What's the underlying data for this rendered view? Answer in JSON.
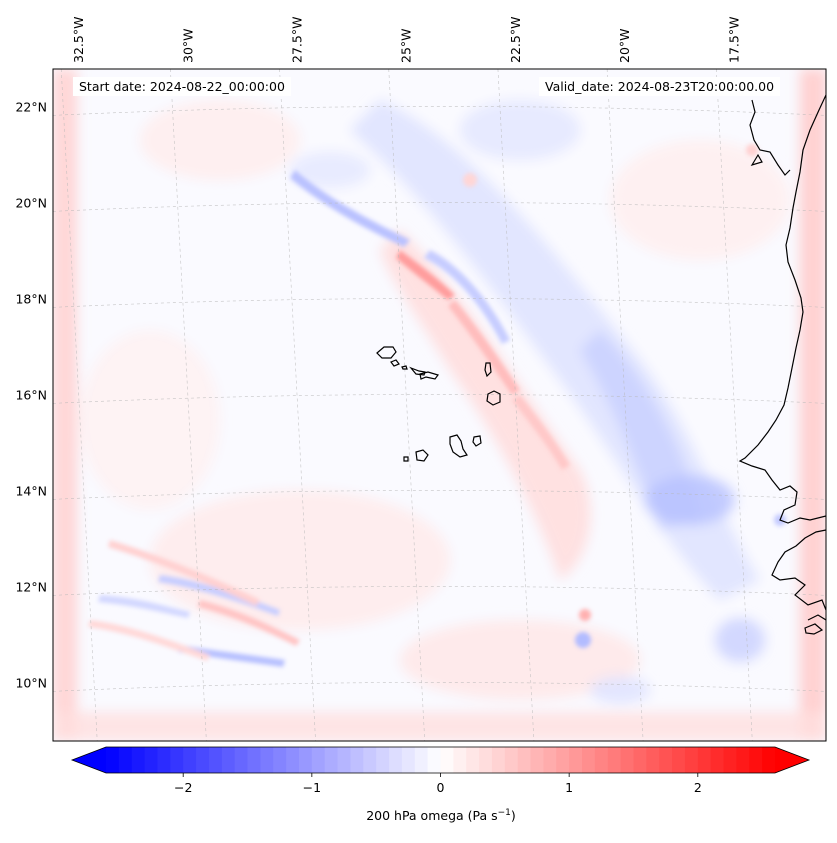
{
  "annotations": {
    "start_date": "Start date: 2024-08-22_00:00:00",
    "valid_date": "Valid_date: 2024-08-23T20:00:00.00"
  },
  "map": {
    "extent": {
      "lon_min": -33.1,
      "lon_max": -15.4,
      "lat_min": 8.8,
      "lat_max": 22.8
    },
    "lon_ticks": [
      {
        "lon": -32.5,
        "label": "32.5°W"
      },
      {
        "lon": -30.0,
        "label": "30°W"
      },
      {
        "lon": -27.5,
        "label": "27.5°W"
      },
      {
        "lon": -25.0,
        "label": "25°W"
      },
      {
        "lon": -22.5,
        "label": "22.5°W"
      },
      {
        "lon": -20.0,
        "label": "20°W"
      },
      {
        "lon": -17.5,
        "label": "17.5°W"
      }
    ],
    "lat_ticks": [
      {
        "lat": 22,
        "label": "22°N"
      },
      {
        "lat": 20,
        "label": "20°N"
      },
      {
        "lat": 18,
        "label": "18°N"
      },
      {
        "lat": 16,
        "label": "16°N"
      },
      {
        "lat": 14,
        "label": "14°N"
      },
      {
        "lat": 12,
        "label": "12°N"
      },
      {
        "lat": 10,
        "label": "10°N"
      }
    ],
    "gridlines": true,
    "field_colormap": "bwr",
    "features": [
      {
        "name": "cape-verde-islands",
        "type": "islands"
      },
      {
        "name": "west-africa-coastline",
        "type": "coastline"
      }
    ]
  },
  "colorbar": {
    "label_main": "200 hPa omega (Pa s",
    "label_exp": "−1",
    "label_tail": ")",
    "vmin": -2.6,
    "vmax": 2.6,
    "ticks": [
      {
        "value": -2,
        "label": "−2"
      },
      {
        "value": -1,
        "label": "−1"
      },
      {
        "value": 0,
        "label": "0"
      },
      {
        "value": 1,
        "label": "1"
      },
      {
        "value": 2,
        "label": "2"
      }
    ],
    "colors": {
      "low": "#0000ff",
      "mid": "#ffffff",
      "high": "#ff0000"
    },
    "extend": "both"
  }
}
